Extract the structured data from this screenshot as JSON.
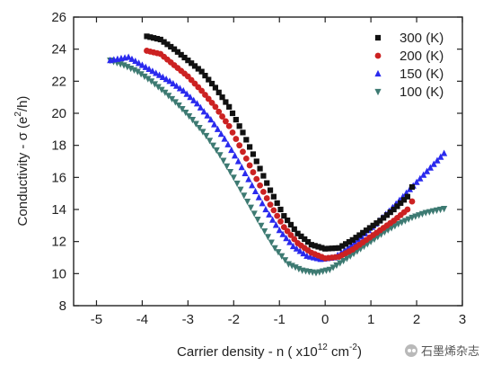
{
  "chart_data": {
    "type": "scatter",
    "xlabel_main": "Carrier density - n ( x10",
    "xlabel_exp": "12",
    "xlabel_unit": " cm",
    "xlabel_unit_exp": "-2",
    "xlabel_close": ")",
    "ylabel_main": "Conductivity - σ (e",
    "ylabel_exp": "2",
    "ylabel_close": "/h)",
    "xlim": [
      -5.5,
      3.0
    ],
    "ylim": [
      8,
      26
    ],
    "xticks": [
      -5,
      -4,
      -3,
      -2,
      -1,
      0,
      1,
      2,
      3
    ],
    "yticks": [
      8,
      10,
      12,
      14,
      16,
      18,
      20,
      22,
      24,
      26
    ],
    "legend_position": "top-right",
    "series": [
      {
        "name": "300 (K)",
        "color": "#111111",
        "marker": "square",
        "points": [
          [
            -3.9,
            24.8
          ],
          [
            -3.6,
            24.6
          ],
          [
            -3.3,
            24.0
          ],
          [
            -3.0,
            23.3
          ],
          [
            -2.7,
            22.6
          ],
          [
            -2.4,
            21.6
          ],
          [
            -2.1,
            20.4
          ],
          [
            -1.8,
            18.8
          ],
          [
            -1.5,
            17.0
          ],
          [
            -1.2,
            15.2
          ],
          [
            -0.9,
            13.6
          ],
          [
            -0.6,
            12.5
          ],
          [
            -0.3,
            11.8
          ],
          [
            0.0,
            11.55
          ],
          [
            0.3,
            11.6
          ],
          [
            0.6,
            12.1
          ],
          [
            0.9,
            12.7
          ],
          [
            1.2,
            13.3
          ],
          [
            1.5,
            14.0
          ],
          [
            1.8,
            14.8
          ],
          [
            1.9,
            15.4
          ]
        ]
      },
      {
        "name": "200 (K)",
        "color": "#cc2222",
        "marker": "circle",
        "points": [
          [
            -3.9,
            23.9
          ],
          [
            -3.6,
            23.7
          ],
          [
            -3.3,
            23.0
          ],
          [
            -3.0,
            22.3
          ],
          [
            -2.7,
            21.4
          ],
          [
            -2.4,
            20.4
          ],
          [
            -2.1,
            19.2
          ],
          [
            -1.8,
            17.6
          ],
          [
            -1.5,
            15.9
          ],
          [
            -1.2,
            14.3
          ],
          [
            -0.9,
            12.9
          ],
          [
            -0.6,
            11.9
          ],
          [
            -0.3,
            11.3
          ],
          [
            0.0,
            10.95
          ],
          [
            0.3,
            11.05
          ],
          [
            0.6,
            11.5
          ],
          [
            0.9,
            12.1
          ],
          [
            1.2,
            12.7
          ],
          [
            1.5,
            13.3
          ],
          [
            1.8,
            14.0
          ],
          [
            1.9,
            14.5
          ]
        ]
      },
      {
        "name": "150 (K)",
        "color": "#2a2aee",
        "marker": "triangle-up",
        "points": [
          [
            -4.7,
            23.3
          ],
          [
            -4.3,
            23.5
          ],
          [
            -4.0,
            23.0
          ],
          [
            -3.7,
            22.5
          ],
          [
            -3.4,
            22.0
          ],
          [
            -3.1,
            21.4
          ],
          [
            -2.8,
            20.6
          ],
          [
            -2.5,
            19.6
          ],
          [
            -2.2,
            18.4
          ],
          [
            -1.9,
            17.0
          ],
          [
            -1.6,
            15.5
          ],
          [
            -1.3,
            14.0
          ],
          [
            -1.0,
            12.7
          ],
          [
            -0.7,
            11.7
          ],
          [
            -0.4,
            11.1
          ],
          [
            -0.1,
            10.9
          ],
          [
            0.2,
            11.0
          ],
          [
            0.5,
            11.6
          ],
          [
            0.8,
            12.3
          ],
          [
            1.1,
            13.1
          ],
          [
            1.4,
            13.9
          ],
          [
            1.7,
            14.8
          ],
          [
            2.0,
            15.7
          ],
          [
            2.3,
            16.6
          ],
          [
            2.6,
            17.5
          ]
        ]
      },
      {
        "name": "100 (K)",
        "color": "#3d7a72",
        "marker": "triangle-down",
        "points": [
          [
            -4.7,
            23.3
          ],
          [
            -4.4,
            23.0
          ],
          [
            -4.1,
            22.6
          ],
          [
            -3.8,
            22.0
          ],
          [
            -3.5,
            21.3
          ],
          [
            -3.2,
            20.5
          ],
          [
            -2.9,
            19.6
          ],
          [
            -2.6,
            18.6
          ],
          [
            -2.3,
            17.4
          ],
          [
            -2.0,
            16.0
          ],
          [
            -1.7,
            14.5
          ],
          [
            -1.4,
            13.0
          ],
          [
            -1.1,
            11.6
          ],
          [
            -0.8,
            10.6
          ],
          [
            -0.5,
            10.2
          ],
          [
            -0.2,
            10.05
          ],
          [
            0.1,
            10.25
          ],
          [
            0.4,
            10.8
          ],
          [
            0.7,
            11.4
          ],
          [
            1.0,
            12.0
          ],
          [
            1.3,
            12.6
          ],
          [
            1.6,
            13.1
          ],
          [
            1.9,
            13.5
          ],
          [
            2.2,
            13.8
          ],
          [
            2.6,
            14.05
          ]
        ]
      }
    ]
  },
  "watermark": {
    "text": "石墨烯杂志",
    "icon": "wechat-icon"
  }
}
